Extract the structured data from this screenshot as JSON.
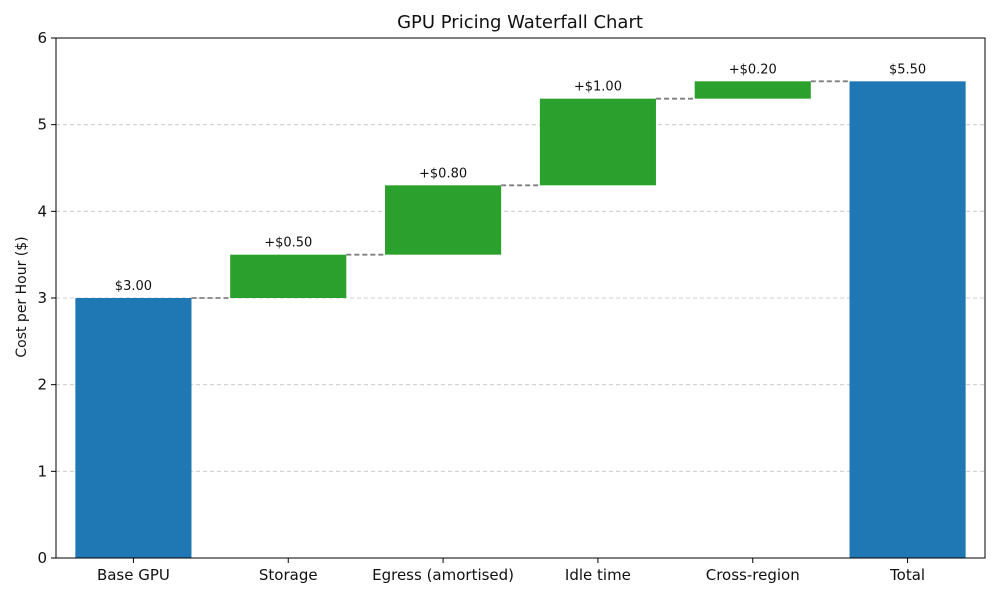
{
  "chart_data": {
    "type": "bar",
    "subtype": "waterfall",
    "title": "GPU Pricing Waterfall Chart",
    "xlabel": "",
    "ylabel": "Cost per Hour ($)",
    "ylim": [
      0,
      6
    ],
    "yticks": [
      0,
      1,
      2,
      3,
      4,
      5,
      6
    ],
    "grid": "y",
    "categories": [
      "Base GPU",
      "Storage",
      "Egress (amortised)",
      "Idle time",
      "Cross-region",
      "Total"
    ],
    "values": [
      3.0,
      0.5,
      0.8,
      1.0,
      0.2,
      5.5
    ],
    "kinds": [
      "total",
      "increase",
      "increase",
      "increase",
      "increase",
      "total"
    ],
    "labels": [
      "$3.00",
      "+$0.50",
      "+$0.80",
      "+$1.00",
      "+$0.20",
      "$5.50"
    ],
    "colors": {
      "total": "#1f77b4",
      "increase": "#2ca02c",
      "connector": "#808080",
      "grid": "#cccccc",
      "axis": "#000000"
    }
  }
}
